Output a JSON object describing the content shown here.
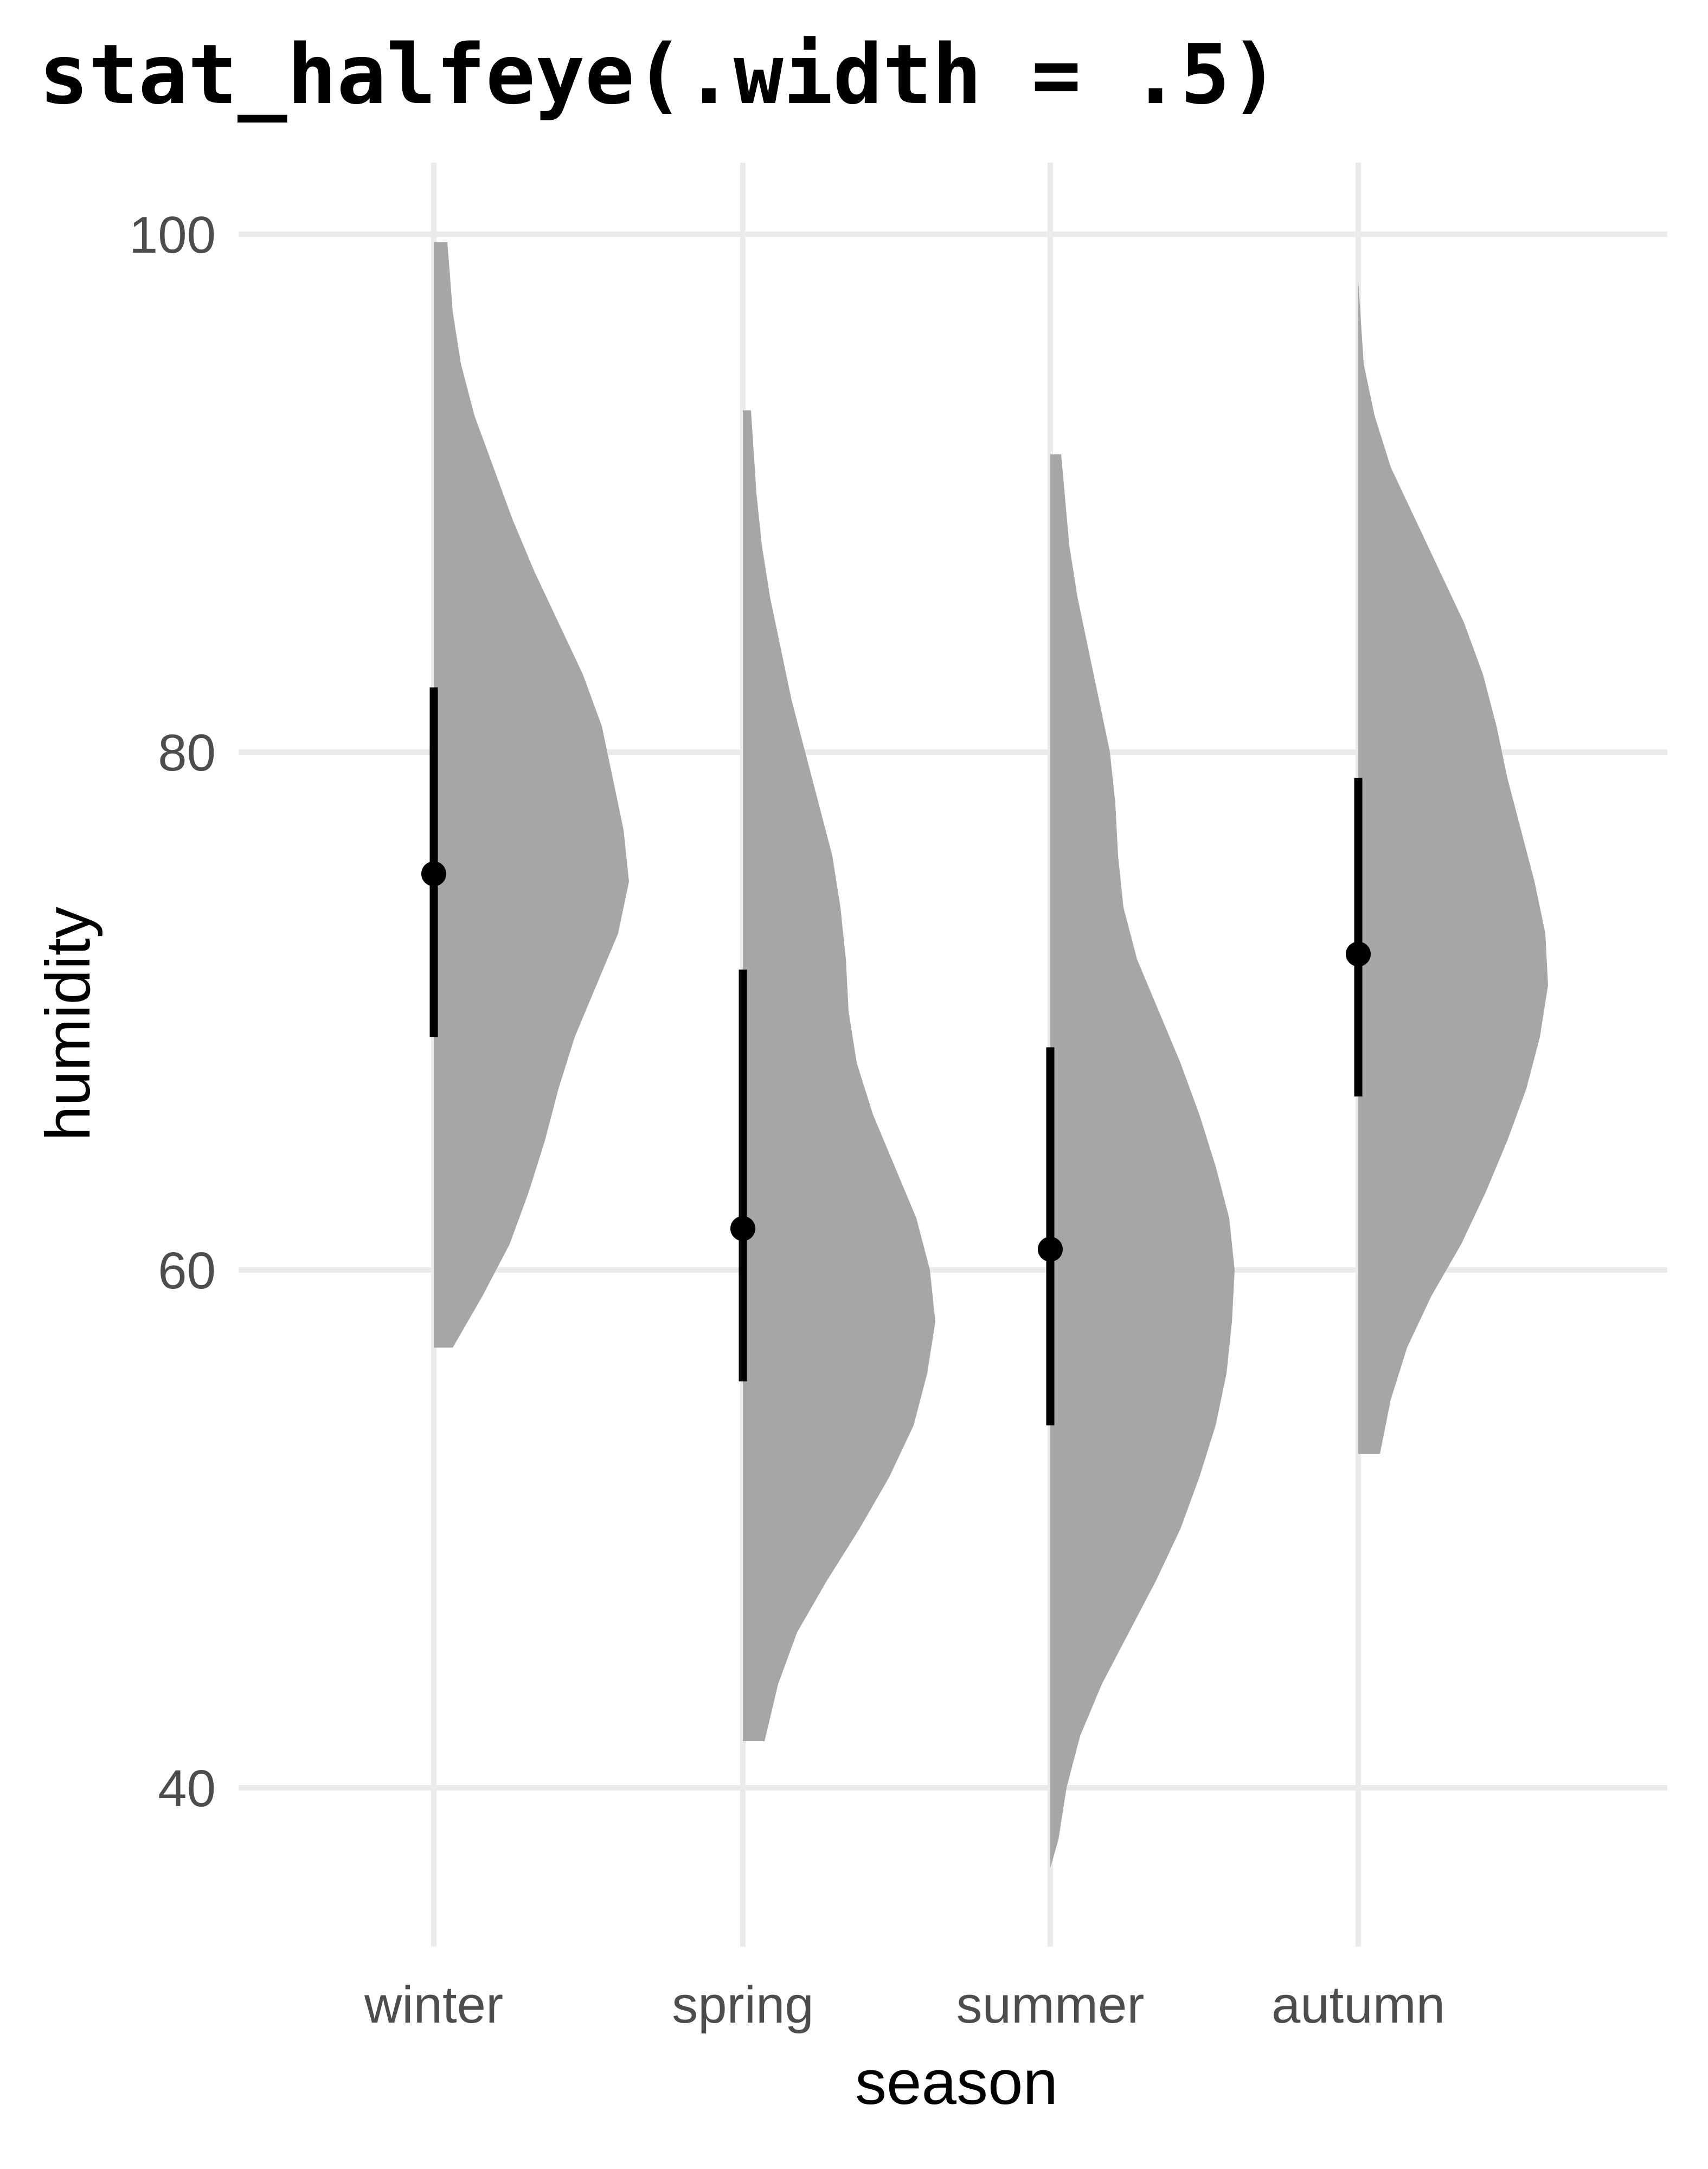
{
  "chart_data": {
    "type": "halfeye",
    "title": "stat_halfeye(.width = .5)",
    "xlabel": "season",
    "ylabel": "humidity",
    "categories": [
      "winter",
      "spring",
      "summer",
      "autumn"
    ],
    "ylim": [
      32,
      103
    ],
    "yticks": [
      40,
      60,
      80,
      100
    ],
    "grid": true,
    "slab_color": "#a6a6a6",
    "interval_color": "#000000",
    "interval_width": 0.5,
    "series": [
      {
        "category": "winter",
        "median": 75.3,
        "interval": [
          69.0,
          82.5
        ],
        "range": [
          57.0,
          99.7
        ],
        "density": [
          [
            57.0,
            0.07
          ],
          [
            59.0,
            0.18
          ],
          [
            61.0,
            0.28
          ],
          [
            63.0,
            0.35
          ],
          [
            65.0,
            0.41
          ],
          [
            67.0,
            0.46
          ],
          [
            69.0,
            0.52
          ],
          [
            71.0,
            0.6
          ],
          [
            73.0,
            0.68
          ],
          [
            75.0,
            0.72
          ],
          [
            77.0,
            0.7
          ],
          [
            79.0,
            0.66
          ],
          [
            81.0,
            0.62
          ],
          [
            83.0,
            0.55
          ],
          [
            85.0,
            0.46
          ],
          [
            87.0,
            0.37
          ],
          [
            89.0,
            0.29
          ],
          [
            91.0,
            0.22
          ],
          [
            93.0,
            0.15
          ],
          [
            95.0,
            0.1
          ],
          [
            97.0,
            0.07
          ],
          [
            99.7,
            0.05
          ]
        ]
      },
      {
        "category": "spring",
        "median": 61.6,
        "interval": [
          55.7,
          71.6
        ],
        "range": [
          41.8,
          93.2
        ],
        "density": [
          [
            41.8,
            0.08
          ],
          [
            44.0,
            0.13
          ],
          [
            46.0,
            0.2
          ],
          [
            48.0,
            0.31
          ],
          [
            50.0,
            0.43
          ],
          [
            52.0,
            0.54
          ],
          [
            54.0,
            0.63
          ],
          [
            56.0,
            0.68
          ],
          [
            58.0,
            0.71
          ],
          [
            60.0,
            0.69
          ],
          [
            62.0,
            0.64
          ],
          [
            64.0,
            0.56
          ],
          [
            66.0,
            0.48
          ],
          [
            68.0,
            0.42
          ],
          [
            70.0,
            0.39
          ],
          [
            72.0,
            0.38
          ],
          [
            74.0,
            0.36
          ],
          [
            76.0,
            0.33
          ],
          [
            78.0,
            0.28
          ],
          [
            80.0,
            0.23
          ],
          [
            82.0,
            0.18
          ],
          [
            84.0,
            0.14
          ],
          [
            86.0,
            0.1
          ],
          [
            88.0,
            0.07
          ],
          [
            90.0,
            0.05
          ],
          [
            93.2,
            0.03
          ]
        ]
      },
      {
        "category": "summer",
        "median": 60.8,
        "interval": [
          54.0,
          68.6
        ],
        "range": [
          36.9,
          91.5
        ],
        "density": [
          [
            36.9,
            0.0
          ],
          [
            38.0,
            0.03
          ],
          [
            40.0,
            0.06
          ],
          [
            42.0,
            0.11
          ],
          [
            44.0,
            0.19
          ],
          [
            46.0,
            0.29
          ],
          [
            48.0,
            0.39
          ],
          [
            50.0,
            0.48
          ],
          [
            52.0,
            0.55
          ],
          [
            54.0,
            0.61
          ],
          [
            56.0,
            0.65
          ],
          [
            58.0,
            0.67
          ],
          [
            60.0,
            0.68
          ],
          [
            62.0,
            0.66
          ],
          [
            64.0,
            0.61
          ],
          [
            66.0,
            0.55
          ],
          [
            68.0,
            0.48
          ],
          [
            70.0,
            0.4
          ],
          [
            72.0,
            0.32
          ],
          [
            74.0,
            0.27
          ],
          [
            76.0,
            0.25
          ],
          [
            78.0,
            0.24
          ],
          [
            80.0,
            0.22
          ],
          [
            82.0,
            0.18
          ],
          [
            84.0,
            0.14
          ],
          [
            86.0,
            0.1
          ],
          [
            88.0,
            0.07
          ],
          [
            91.5,
            0.04
          ]
        ]
      },
      {
        "category": "autumn",
        "median": 72.2,
        "interval": [
          66.7,
          79.0
        ],
        "range": [
          52.9,
          98.2
        ],
        "density": [
          [
            52.9,
            0.08
          ],
          [
            55.0,
            0.12
          ],
          [
            57.0,
            0.18
          ],
          [
            59.0,
            0.27
          ],
          [
            61.0,
            0.38
          ],
          [
            63.0,
            0.47
          ],
          [
            65.0,
            0.55
          ],
          [
            67.0,
            0.62
          ],
          [
            69.0,
            0.67
          ],
          [
            71.0,
            0.7
          ],
          [
            73.0,
            0.69
          ],
          [
            75.0,
            0.65
          ],
          [
            77.0,
            0.6
          ],
          [
            79.0,
            0.55
          ],
          [
            81.0,
            0.51
          ],
          [
            83.0,
            0.46
          ],
          [
            85.0,
            0.39
          ],
          [
            87.0,
            0.3
          ],
          [
            89.0,
            0.21
          ],
          [
            91.0,
            0.12
          ],
          [
            93.0,
            0.06
          ],
          [
            95.0,
            0.02
          ],
          [
            98.2,
            0.0
          ]
        ]
      }
    ]
  }
}
